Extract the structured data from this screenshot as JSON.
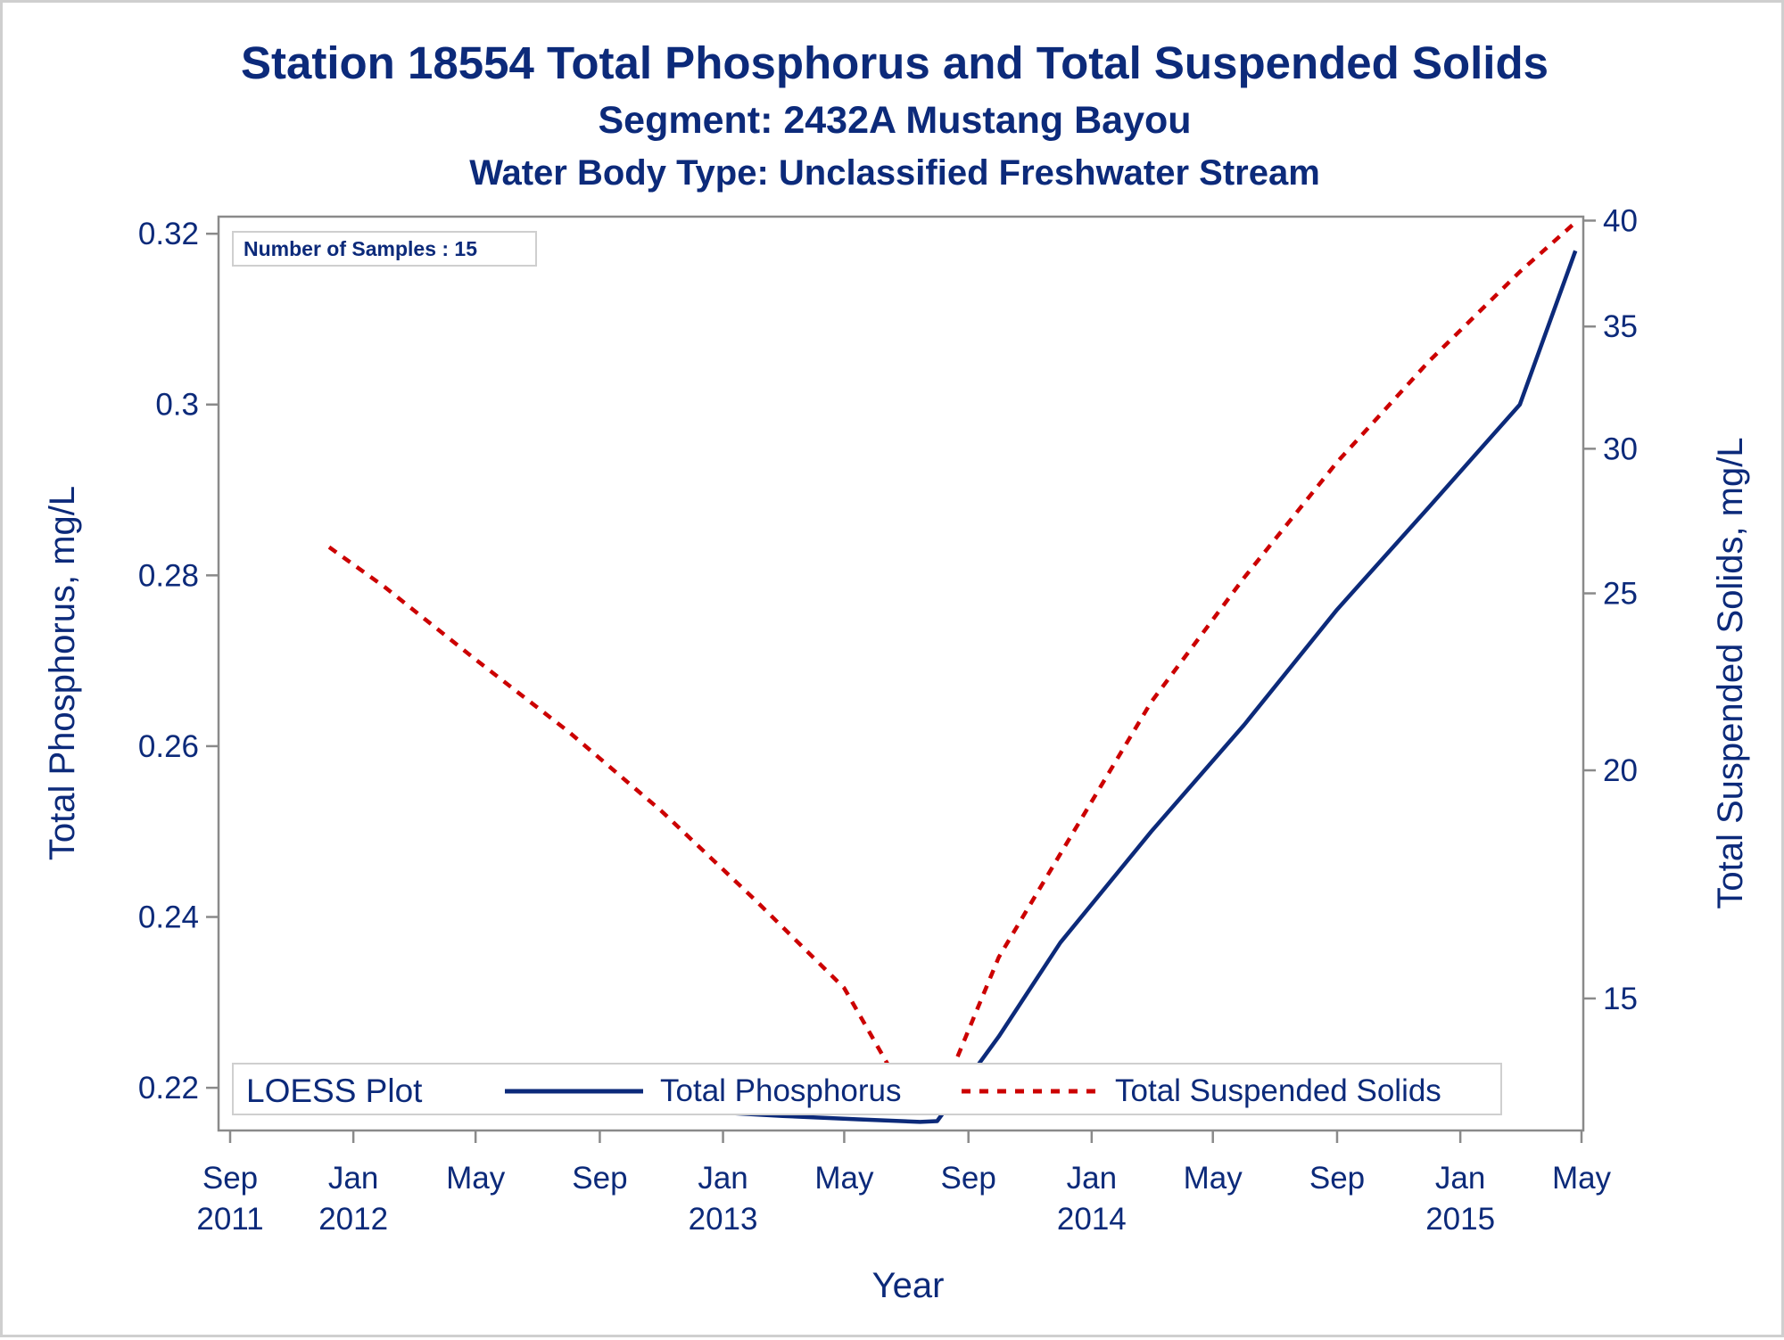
{
  "titles": {
    "main": "Station 18554  Total Phosphorus and Total Suspended Solids",
    "segment": "Segment: 2432A  Mustang Bayou",
    "water_body": "Water Body Type: Unclassified Freshwater Stream"
  },
  "colors": {
    "text": "#0c2a7a",
    "axis": "#8a8a8a",
    "phosphorus": "#0c2a7a",
    "tss": "#cc0000",
    "border": "#cfcfcf"
  },
  "chart_data": {
    "type": "line",
    "title": "Station 18554  Total Phosphorus and Total Suspended Solids",
    "subtitle": [
      "Segment: 2432A  Mustang Bayou",
      "Water Body Type: Unclassified Freshwater Stream"
    ],
    "xlabel": "Year",
    "ylabel_left": "Total Phosphorus, mg/L",
    "ylabel_right": "Total Suspended Solids, mg/L",
    "right_axis_scale": "log",
    "xlim": [
      "2011-09-01",
      "2015-05-01"
    ],
    "ylim_left": [
      0.215,
      0.322
    ],
    "ylim_right": [
      12.7,
      40.2
    ],
    "x_ticks": [
      {
        "date": "2011-09-01",
        "month": "Sep",
        "year": "2011"
      },
      {
        "date": "2012-01-01",
        "month": "Jan",
        "year": "2012"
      },
      {
        "date": "2012-05-01",
        "month": "May",
        "year": ""
      },
      {
        "date": "2012-09-01",
        "month": "Sep",
        "year": ""
      },
      {
        "date": "2013-01-01",
        "month": "Jan",
        "year": "2013"
      },
      {
        "date": "2013-05-01",
        "month": "May",
        "year": ""
      },
      {
        "date": "2013-09-01",
        "month": "Sep",
        "year": ""
      },
      {
        "date": "2014-01-01",
        "month": "Jan",
        "year": "2014"
      },
      {
        "date": "2014-05-01",
        "month": "May",
        "year": ""
      },
      {
        "date": "2014-09-01",
        "month": "Sep",
        "year": ""
      },
      {
        "date": "2015-01-01",
        "month": "Jan",
        "year": "2015"
      },
      {
        "date": "2015-05-01",
        "month": "May",
        "year": ""
      }
    ],
    "y_ticks_left": [
      "0.22",
      "0.24",
      "0.26",
      "0.28",
      "0.3",
      "0.32"
    ],
    "y_ticks_right": [
      "15",
      "20",
      "25",
      "30",
      "35",
      "40"
    ],
    "inset_label": "Number of Samples : 15",
    "legend": {
      "title": "LOESS Plot",
      "placement": "bottom-left",
      "entries": [
        "Total Phosphorus",
        "Total Suspended Solids"
      ]
    },
    "series": [
      {
        "name": "Total Phosphorus",
        "axis": "left",
        "style": "solid",
        "x": [
          "2011-12-08",
          "2012-02-01",
          "2012-04-01",
          "2012-06-01",
          "2012-09-01",
          "2012-12-01",
          "2013-03-01",
          "2013-05-15",
          "2013-07-15",
          "2013-08-01",
          "2013-10-01",
          "2013-12-01",
          "2014-03-01",
          "2014-06-01",
          "2014-09-01",
          "2014-12-01",
          "2015-03-01",
          "2015-04-25"
        ],
        "values": [
          0.2215,
          0.2205,
          0.2195,
          0.2187,
          0.218,
          0.2173,
          0.2167,
          0.2163,
          0.216,
          0.2161,
          0.226,
          0.237,
          0.25,
          0.2625,
          0.276,
          0.288,
          0.3,
          0.318
        ]
      },
      {
        "name": "Total Suspended Solids",
        "axis": "right",
        "style": "dashed",
        "x": [
          "2011-12-08",
          "2012-02-01",
          "2012-05-01",
          "2012-08-01",
          "2012-11-01",
          "2013-02-01",
          "2013-05-01",
          "2013-07-10",
          "2013-08-01",
          "2013-10-01",
          "2013-12-01",
          "2014-03-01",
          "2014-06-01",
          "2014-09-01",
          "2014-12-01",
          "2015-03-01",
          "2015-04-27"
        ],
        "values": [
          26.5,
          25.2,
          23.0,
          21.0,
          19.0,
          17.0,
          15.2,
          13.0,
          13.1,
          15.8,
          18.0,
          21.8,
          25.5,
          29.5,
          33.5,
          37.5,
          40.0
        ]
      }
    ]
  }
}
